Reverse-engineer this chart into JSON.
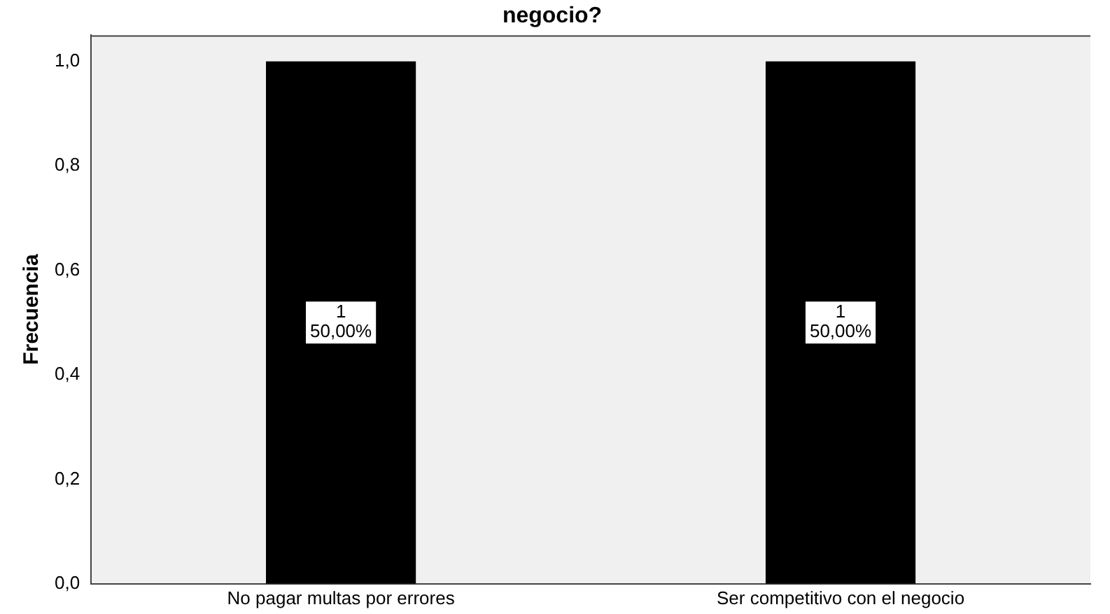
{
  "chart_data": {
    "type": "bar",
    "title": "negocio?",
    "ylabel": "Frecuencia",
    "categories": [
      "No pagar multas por errores",
      "Ser competitivo con el negocio"
    ],
    "values": [
      1,
      1
    ],
    "color": "#000000",
    "value_labels": [
      "1\n50,00%",
      "1\n50,00%"
    ],
    "ylim": [
      0,
      1.05
    ],
    "yticks": [
      {
        "value": 0,
        "label": "0,0"
      },
      {
        "value": 0.2,
        "label": "0,2"
      },
      {
        "value": 0.4,
        "label": "0,4"
      },
      {
        "value": 0.6,
        "label": "0,6"
      },
      {
        "value": 0.8,
        "label": "0,8"
      },
      {
        "value": 1,
        "label": "1,0"
      }
    ],
    "grid": false,
    "legend": false
  }
}
